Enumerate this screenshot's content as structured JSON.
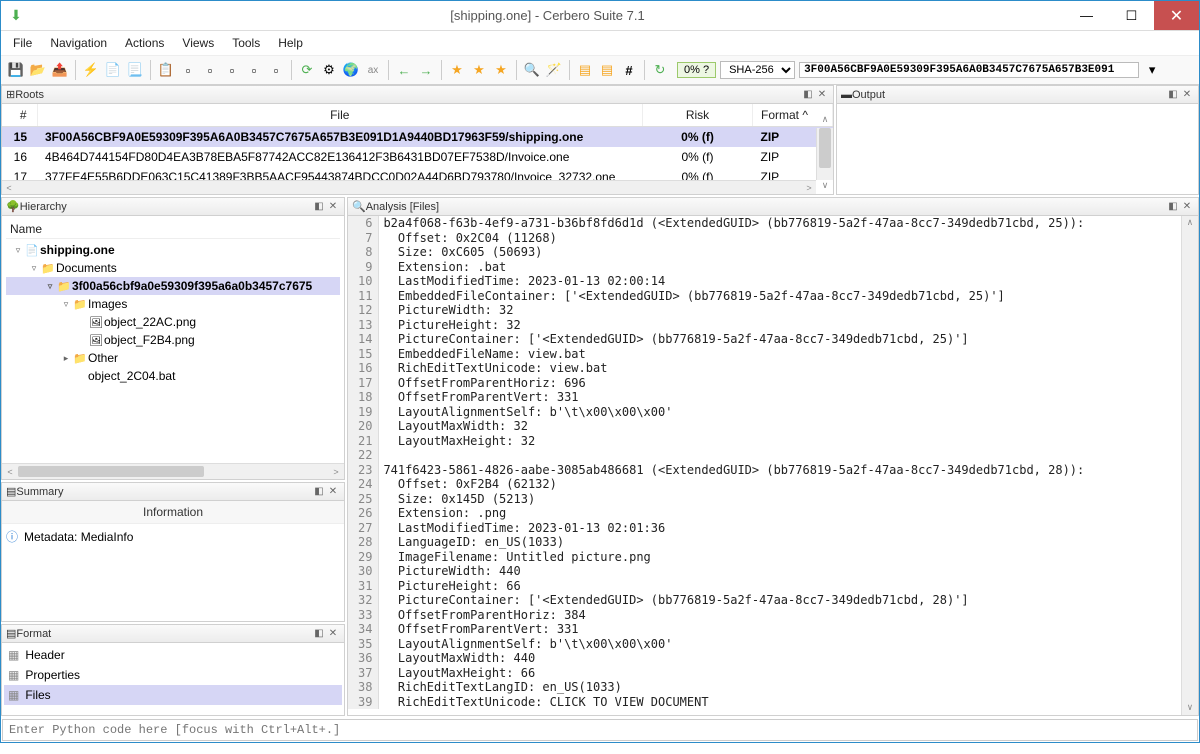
{
  "window": {
    "title": "[shipping.one] - Cerbero Suite 7.1"
  },
  "menu": [
    "File",
    "Navigation",
    "Actions",
    "Views",
    "Tools",
    "Help"
  ],
  "toolbar": {
    "risk": "0% ?",
    "hash_type": "SHA-256",
    "hash_value": "3F00A56CBF9A0E59309F395A6A0B3457C7675A657B3E091"
  },
  "roots": {
    "title": "Roots",
    "headers": {
      "num": "#",
      "file": "File",
      "risk": "Risk",
      "format": "Format ^"
    },
    "rows": [
      {
        "n": "15",
        "file": "3F00A56CBF9A0E59309F395A6A0B3457C7675A657B3E091D1A9440BD17963F59/shipping.one",
        "risk": "0% (f)",
        "fmt": "ZIP",
        "sel": true
      },
      {
        "n": "16",
        "file": "4B464D744154FD80D4EA3B78EBA5F87742ACC82E136412F3B6431BD07EF7538D/Invoice.one",
        "risk": "0% (f)",
        "fmt": "ZIP",
        "sel": false
      },
      {
        "n": "17",
        "file": "377FE4E55B6DDE063C15C41389F3BB5AACF95443874BDCC0D02A44D6BD793780/Invoice_32732.one",
        "risk": "0% (f)",
        "fmt": "ZIP",
        "sel": false
      }
    ]
  },
  "output": {
    "title": "Output"
  },
  "hierarchy": {
    "title": "Hierarchy",
    "header": "Name",
    "nodes": [
      {
        "depth": 0,
        "toggle": "▿",
        "icon": "file",
        "label": "shipping.one",
        "bold": true
      },
      {
        "depth": 1,
        "toggle": "▿",
        "icon": "folder",
        "label": "Documents"
      },
      {
        "depth": 2,
        "toggle": "▿",
        "icon": "folder-sel",
        "label": "3f00a56cbf9a0e59309f395a6a0b3457c7675",
        "sel": true
      },
      {
        "depth": 3,
        "toggle": "▿",
        "icon": "folder",
        "label": "Images"
      },
      {
        "depth": 4,
        "toggle": "",
        "icon": "img",
        "label": "object_22AC.png"
      },
      {
        "depth": 4,
        "toggle": "",
        "icon": "img",
        "label": "object_F2B4.png"
      },
      {
        "depth": 3,
        "toggle": "▸",
        "icon": "folder",
        "label": "Other"
      },
      {
        "depth": 3,
        "toggle": "",
        "icon": "",
        "label": "object_2C04.bat"
      }
    ]
  },
  "summary": {
    "title": "Summary",
    "header": "Information",
    "meta": "Metadata: MediaInfo"
  },
  "format": {
    "title": "Format",
    "items": [
      {
        "label": "Header",
        "sel": false
      },
      {
        "label": "Properties",
        "sel": false
      },
      {
        "label": "Files",
        "sel": true
      }
    ]
  },
  "analysis": {
    "title": "Analysis [Files]",
    "start": 6,
    "lines": [
      "b2a4f068-f63b-4ef9-a731-b36bf8fd6d1d (<ExtendedGUID> (bb776819-5a2f-47aa-8cc7-349dedb71cbd, 25)):",
      "  Offset: 0x2C04 (11268)",
      "  Size: 0xC605 (50693)",
      "  Extension: .bat",
      "  LastModifiedTime: 2023-01-13 02:00:14",
      "  EmbeddedFileContainer: ['<ExtendedGUID> (bb776819-5a2f-47aa-8cc7-349dedb71cbd, 25)']",
      "  PictureWidth: 32",
      "  PictureHeight: 32",
      "  PictureContainer: ['<ExtendedGUID> (bb776819-5a2f-47aa-8cc7-349dedb71cbd, 25)']",
      "  EmbeddedFileName: view.bat",
      "  RichEditTextUnicode: view.bat",
      "  OffsetFromParentHoriz: 696",
      "  OffsetFromParentVert: 331",
      "  LayoutAlignmentSelf: b'\\t\\x00\\x00\\x00'",
      "  LayoutMaxWidth: 32",
      "  LayoutMaxHeight: 32",
      "",
      "741f6423-5861-4826-aabe-3085ab486681 (<ExtendedGUID> (bb776819-5a2f-47aa-8cc7-349dedb71cbd, 28)):",
      "  Offset: 0xF2B4 (62132)",
      "  Size: 0x145D (5213)",
      "  Extension: .png",
      "  LastModifiedTime: 2023-01-13 02:01:36",
      "  LanguageID: en_US(1033)",
      "  ImageFilename: Untitled picture.png",
      "  PictureWidth: 440",
      "  PictureHeight: 66",
      "  PictureContainer: ['<ExtendedGUID> (bb776819-5a2f-47aa-8cc7-349dedb71cbd, 28)']",
      "  OffsetFromParentHoriz: 384",
      "  OffsetFromParentVert: 331",
      "  LayoutAlignmentSelf: b'\\t\\x00\\x00\\x00'",
      "  LayoutMaxWidth: 440",
      "  LayoutMaxHeight: 66",
      "  RichEditTextLangID: en_US(1033)",
      "  RichEditTextUnicode: CLICK TO VIEW DOCUMENT"
    ]
  },
  "console": {
    "placeholder": "Enter Python code here [focus with Ctrl+Alt+.]"
  }
}
